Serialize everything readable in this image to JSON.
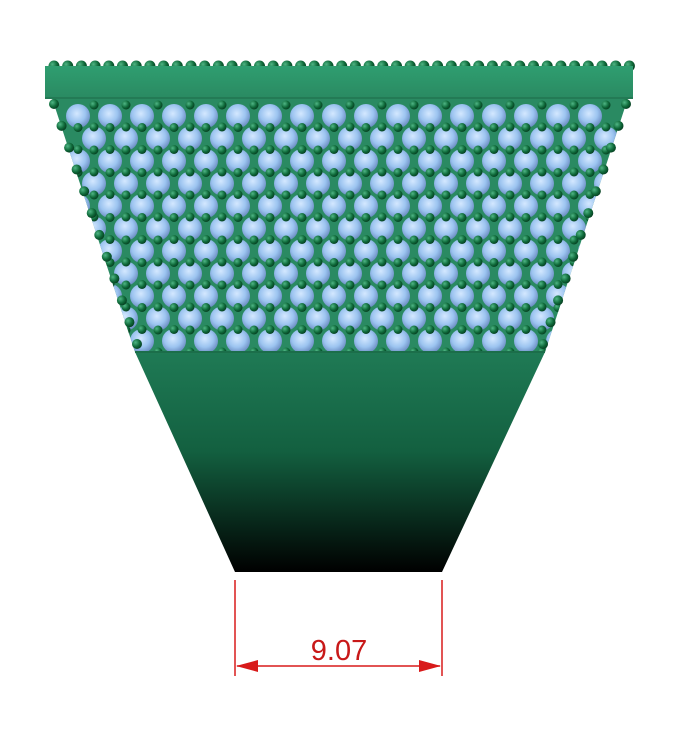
{
  "figure": {
    "dimension_label": "9.07"
  },
  "colors": {
    "belt_green": "#2a8a62",
    "belt_band": "#2f9a6c",
    "belt_dark": "#000000",
    "fiber_blue": "#9cc4f0",
    "fiber_dot": "#0f6a3a",
    "dimension_red": "#d81a1a"
  }
}
